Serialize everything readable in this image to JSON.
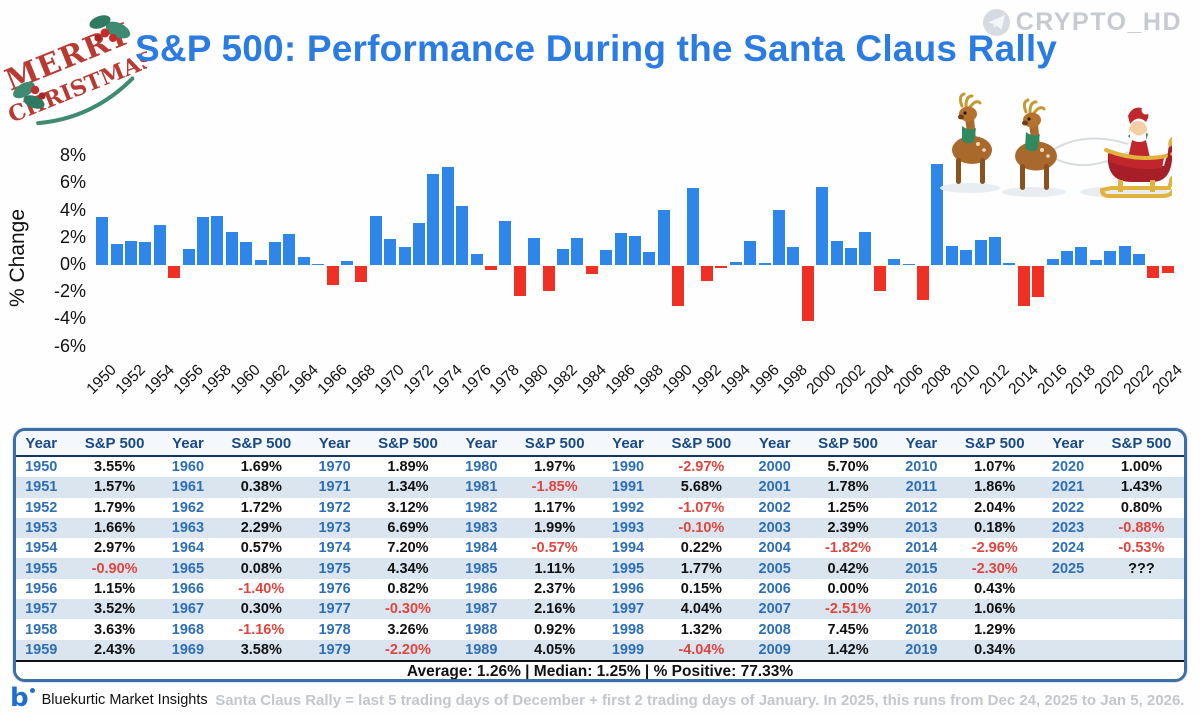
{
  "header": {
    "title": "S&P 500: Performance During the Santa Claus Rally",
    "brand_handle": "CRYPTO_HD",
    "decoration_line1": "MERRY",
    "decoration_line2": "CHRISTMAS"
  },
  "chart_data": {
    "type": "bar",
    "title": "S&P 500: Performance During the Santa Claus Rally",
    "xlabel": "",
    "ylabel": "% Change",
    "ylim": [
      -7,
      9
    ],
    "ytick_labels": [
      "8%",
      "6%",
      "4%",
      "2%",
      "0%",
      "-2%",
      "-4%",
      "-6%"
    ],
    "ytick_values": [
      8,
      6,
      4,
      2,
      0,
      -2,
      -4,
      -6
    ],
    "xtick_step": 2,
    "grid": false,
    "legend_position": "none",
    "positive_color": "#2e86e8",
    "negative_color": "#ee3124",
    "x": [
      1950,
      1951,
      1952,
      1953,
      1954,
      1955,
      1956,
      1957,
      1958,
      1959,
      1960,
      1961,
      1962,
      1963,
      1964,
      1965,
      1966,
      1967,
      1968,
      1969,
      1970,
      1971,
      1972,
      1973,
      1974,
      1975,
      1976,
      1977,
      1978,
      1979,
      1980,
      1981,
      1982,
      1983,
      1984,
      1985,
      1986,
      1987,
      1988,
      1989,
      1990,
      1991,
      1992,
      1993,
      1994,
      1995,
      1996,
      1997,
      1998,
      1999,
      2000,
      2001,
      2002,
      2003,
      2004,
      2005,
      2006,
      2007,
      2008,
      2009,
      2010,
      2011,
      2012,
      2013,
      2014,
      2015,
      2016,
      2017,
      2018,
      2019,
      2020,
      2021,
      2022,
      2023,
      2024
    ],
    "values": [
      3.55,
      1.57,
      1.79,
      1.66,
      2.97,
      -0.9,
      1.15,
      3.52,
      3.63,
      2.43,
      1.69,
      0.38,
      1.72,
      2.29,
      0.57,
      0.08,
      -1.4,
      0.3,
      -1.16,
      3.58,
      1.89,
      1.34,
      3.12,
      6.69,
      7.2,
      4.34,
      0.82,
      -0.3,
      3.26,
      -2.2,
      1.97,
      -1.85,
      1.17,
      1.99,
      -0.57,
      1.11,
      2.37,
      2.16,
      0.92,
      4.05,
      -2.97,
      5.68,
      -1.07,
      -0.1,
      0.22,
      1.77,
      0.15,
      4.04,
      1.32,
      -4.04,
      5.7,
      1.78,
      1.25,
      2.39,
      -1.82,
      0.42,
      0.0,
      -2.51,
      7.45,
      1.42,
      1.07,
      1.86,
      2.04,
      0.18,
      -2.96,
      -2.3,
      0.43,
      1.06,
      1.29,
      0.34,
      1.0,
      1.43,
      0.8,
      -0.88,
      -0.53
    ]
  },
  "table": {
    "year_header": "Year",
    "value_header": "S&P 500",
    "groups": [
      [
        [
          "1950",
          "3.55%"
        ],
        [
          "1951",
          "1.57%"
        ],
        [
          "1952",
          "1.79%"
        ],
        [
          "1953",
          "1.66%"
        ],
        [
          "1954",
          "2.97%"
        ],
        [
          "1955",
          "-0.90%"
        ],
        [
          "1956",
          "1.15%"
        ],
        [
          "1957",
          "3.52%"
        ],
        [
          "1958",
          "3.63%"
        ],
        [
          "1959",
          "2.43%"
        ]
      ],
      [
        [
          "1960",
          "1.69%"
        ],
        [
          "1961",
          "0.38%"
        ],
        [
          "1962",
          "1.72%"
        ],
        [
          "1963",
          "2.29%"
        ],
        [
          "1964",
          "0.57%"
        ],
        [
          "1965",
          "0.08%"
        ],
        [
          "1966",
          "-1.40%"
        ],
        [
          "1967",
          "0.30%"
        ],
        [
          "1968",
          "-1.16%"
        ],
        [
          "1969",
          "3.58%"
        ]
      ],
      [
        [
          "1970",
          "1.89%"
        ],
        [
          "1971",
          "1.34%"
        ],
        [
          "1972",
          "3.12%"
        ],
        [
          "1973",
          "6.69%"
        ],
        [
          "1974",
          "7.20%"
        ],
        [
          "1975",
          "4.34%"
        ],
        [
          "1976",
          "0.82%"
        ],
        [
          "1977",
          "-0.30%"
        ],
        [
          "1978",
          "3.26%"
        ],
        [
          "1979",
          "-2.20%"
        ]
      ],
      [
        [
          "1980",
          "1.97%"
        ],
        [
          "1981",
          "-1.85%"
        ],
        [
          "1982",
          "1.17%"
        ],
        [
          "1983",
          "1.99%"
        ],
        [
          "1984",
          "-0.57%"
        ],
        [
          "1985",
          "1.11%"
        ],
        [
          "1986",
          "2.37%"
        ],
        [
          "1987",
          "2.16%"
        ],
        [
          "1988",
          "0.92%"
        ],
        [
          "1989",
          "4.05%"
        ]
      ],
      [
        [
          "1990",
          "-2.97%"
        ],
        [
          "1991",
          "5.68%"
        ],
        [
          "1992",
          "-1.07%"
        ],
        [
          "1993",
          "-0.10%"
        ],
        [
          "1994",
          "0.22%"
        ],
        [
          "1995",
          "1.77%"
        ],
        [
          "1996",
          "0.15%"
        ],
        [
          "1997",
          "4.04%"
        ],
        [
          "1998",
          "1.32%"
        ],
        [
          "1999",
          "-4.04%"
        ]
      ],
      [
        [
          "2000",
          "5.70%"
        ],
        [
          "2001",
          "1.78%"
        ],
        [
          "2002",
          "1.25%"
        ],
        [
          "2003",
          "2.39%"
        ],
        [
          "2004",
          "-1.82%"
        ],
        [
          "2005",
          "0.42%"
        ],
        [
          "2006",
          "0.00%"
        ],
        [
          "2007",
          "-2.51%"
        ],
        [
          "2008",
          "7.45%"
        ],
        [
          "2009",
          "1.42%"
        ]
      ],
      [
        [
          "2010",
          "1.07%"
        ],
        [
          "2011",
          "1.86%"
        ],
        [
          "2012",
          "2.04%"
        ],
        [
          "2013",
          "0.18%"
        ],
        [
          "2014",
          "-2.96%"
        ],
        [
          "2015",
          "-2.30%"
        ],
        [
          "2016",
          "0.43%"
        ],
        [
          "2017",
          "1.06%"
        ],
        [
          "2018",
          "1.29%"
        ],
        [
          "2019",
          "0.34%"
        ]
      ],
      [
        [
          "2020",
          "1.00%"
        ],
        [
          "2021",
          "1.43%"
        ],
        [
          "2022",
          "0.80%"
        ],
        [
          "2023",
          "-0.88%"
        ],
        [
          "2024",
          "-0.53%"
        ],
        [
          "2025",
          "???"
        ]
      ]
    ],
    "stats": "Average: 1.26% | Median: 1.25% | % Positive: 77.33%"
  },
  "footer": {
    "brand": "Bluekurtic Market Insights",
    "note": "Santa Claus Rally = last 5 trading days of December + first 2 trading days of January. In 2025, this runs from Dec 24, 2025 to Jan 5, 2026."
  }
}
